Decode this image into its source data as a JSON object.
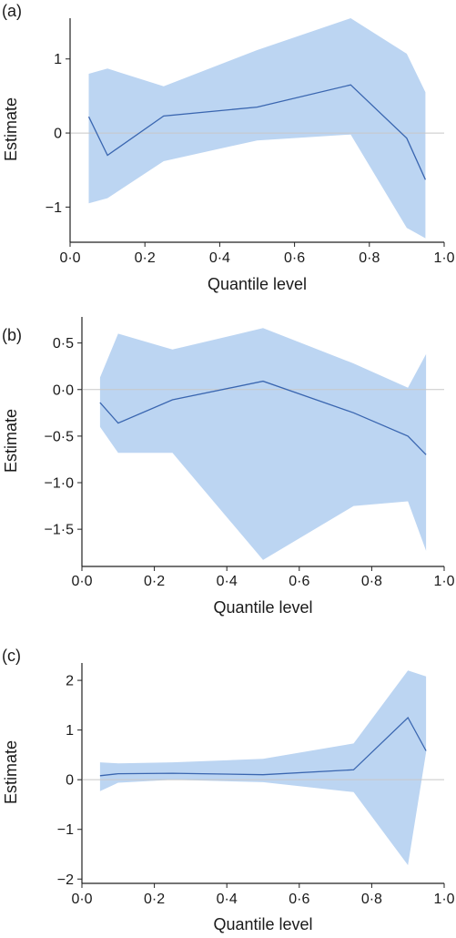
{
  "chart_data": [
    {
      "type": "line",
      "panel_label": "(a)",
      "xlabel": "Quantile level",
      "ylabel": "Estimate",
      "xlim": [
        0,
        1
      ],
      "ylim": [
        -1.45,
        1.55
      ],
      "x_ticks": [
        0,
        0.2,
        0.4,
        0.6,
        0.8,
        1.0
      ],
      "x_tick_labels": [
        "0·0",
        "0·2",
        "0·4",
        "0·6",
        "0·8",
        "1·0"
      ],
      "y_ticks": [
        -1,
        0,
        1
      ],
      "y_tick_labels": [
        "−1",
        "0",
        "1"
      ],
      "zero_line": true,
      "series": [
        {
          "x": [
            0.05,
            0.1,
            0.25,
            0.5,
            0.75,
            0.9,
            0.95
          ],
          "estimate": [
            0.22,
            -0.3,
            0.23,
            0.35,
            0.65,
            -0.07,
            -0.63
          ],
          "lower": [
            -0.95,
            -0.88,
            -0.38,
            -0.1,
            -0.02,
            -1.28,
            -1.42
          ],
          "upper": [
            0.8,
            0.87,
            0.63,
            1.12,
            1.55,
            1.07,
            0.55
          ]
        }
      ]
    },
    {
      "type": "line",
      "panel_label": "(b)",
      "xlabel": "Quantile level",
      "ylabel": "Estimate",
      "xlim": [
        0,
        1
      ],
      "ylim": [
        -1.88,
        0.78
      ],
      "x_ticks": [
        0,
        0.2,
        0.4,
        0.6,
        0.8,
        1.0
      ],
      "x_tick_labels": [
        "0·0",
        "0·2",
        "0·4",
        "0·6",
        "0·8",
        "1·0"
      ],
      "y_ticks": [
        -1.5,
        -1.0,
        -0.5,
        0.0,
        0.5
      ],
      "y_tick_labels": [
        "−1·5",
        "−1·0",
        "−0·5",
        "0·0",
        "0·5"
      ],
      "zero_line": true,
      "series": [
        {
          "x": [
            0.05,
            0.1,
            0.25,
            0.5,
            0.75,
            0.9,
            0.95
          ],
          "estimate": [
            -0.14,
            -0.36,
            -0.11,
            0.09,
            -0.25,
            -0.5,
            -0.7
          ],
          "lower": [
            -0.4,
            -0.68,
            -0.68,
            -1.83,
            -1.25,
            -1.2,
            -1.73
          ],
          "upper": [
            0.13,
            0.6,
            0.43,
            0.66,
            0.28,
            0.02,
            0.38
          ]
        }
      ]
    },
    {
      "type": "line",
      "panel_label": "(c)",
      "xlabel": "Quantile level",
      "ylabel": "Estimate",
      "xlim": [
        0,
        1
      ],
      "ylim": [
        -2.05,
        2.35
      ],
      "x_ticks": [
        0,
        0.2,
        0.4,
        0.6,
        0.8,
        1.0
      ],
      "x_tick_labels": [
        "0·0",
        "0·2",
        "0·4",
        "0·6",
        "0·8",
        "1·0"
      ],
      "y_ticks": [
        -2,
        -1,
        0,
        1,
        2
      ],
      "y_tick_labels": [
        "−2",
        "−1",
        "0",
        "1",
        "2"
      ],
      "zero_line": true,
      "series": [
        {
          "x": [
            0.05,
            0.1,
            0.25,
            0.5,
            0.75,
            0.9,
            0.95
          ],
          "estimate": [
            0.08,
            0.12,
            0.13,
            0.1,
            0.2,
            1.25,
            0.58
          ],
          "lower": [
            -0.23,
            -0.06,
            0.0,
            -0.05,
            -0.25,
            -1.72,
            0.55
          ],
          "upper": [
            0.35,
            0.33,
            0.35,
            0.42,
            0.73,
            2.2,
            2.08
          ]
        }
      ]
    }
  ],
  "colors": {
    "band": "#bcd5f2",
    "line": "#3a66b0",
    "zero_line": "#c8c8c8",
    "axis": "#222222"
  }
}
